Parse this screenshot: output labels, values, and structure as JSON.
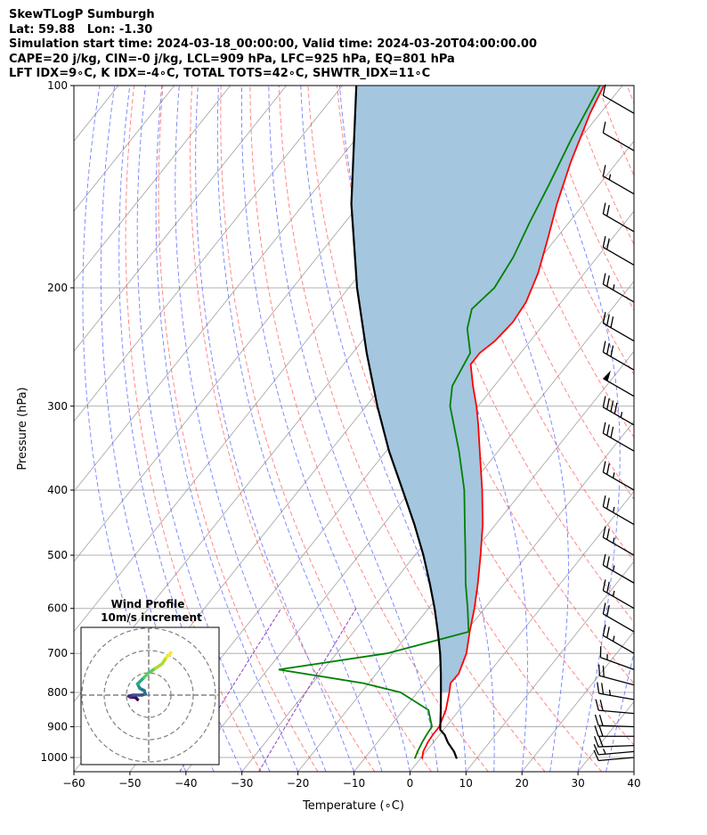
{
  "header": {
    "line1": "SkewTLogP Sumburgh",
    "line2": "Lat: 59.88   Lon: -1.30",
    "line3": "Simulation start time: 2024-03-18_00:00:00, Valid time: 2024-03-20T04:00:00.00",
    "line4": "CAPE=20 j/kg, CIN=-0 j/kg, LCL=909 hPa, LFC=925 hPa, EQ=801 hPa",
    "line5": "LFT IDX=9∘C, K IDX=-4∘C, TOTAL TOTS=42∘C, SHWTR_IDX=11∘C"
  },
  "chart_data": {
    "type": "line",
    "subtype": "skew-t log-p",
    "xlabel": "Temperature (∘C)",
    "ylabel": "Pressure (hPa)",
    "xlim": [
      -60,
      40
    ],
    "ylim": [
      1050,
      100
    ],
    "y_scale": "log",
    "x_ticks": [
      "−60",
      "−50",
      "−40",
      "−30",
      "−20",
      "−10",
      "0",
      "10",
      "20",
      "30",
      "40"
    ],
    "y_ticks": [
      "100",
      "200",
      "300",
      "400",
      "500",
      "600",
      "700",
      "800",
      "900",
      "1000"
    ],
    "series": [
      {
        "key": "temperature",
        "color": "#ff0000",
        "points": [
          [
            1004,
            0.3
          ],
          [
            980,
            -0.5
          ],
          [
            950,
            -1.0
          ],
          [
            925,
            -1.2
          ],
          [
            900,
            -1.2
          ],
          [
            850,
            -2.4
          ],
          [
            800,
            -4.3
          ],
          [
            775,
            -5.4
          ],
          [
            750,
            -5.3
          ],
          [
            700,
            -6.8
          ],
          [
            650,
            -9.3
          ],
          [
            600,
            -11.8
          ],
          [
            550,
            -14.8
          ],
          [
            500,
            -18.3
          ],
          [
            450,
            -22.3
          ],
          [
            400,
            -27.3
          ],
          [
            350,
            -33.3
          ],
          [
            320,
            -37.3
          ],
          [
            300,
            -40.3
          ],
          [
            280,
            -43.8
          ],
          [
            260,
            -47.3
          ],
          [
            250,
            -47.3
          ],
          [
            240,
            -46.3
          ],
          [
            225,
            -45.8
          ],
          [
            210,
            -46.3
          ],
          [
            190,
            -48.3
          ],
          [
            170,
            -51.3
          ],
          [
            150,
            -54.8
          ],
          [
            130,
            -58.3
          ],
          [
            110,
            -61.8
          ],
          [
            100,
            -63.3
          ]
        ]
      },
      {
        "key": "dewpoint",
        "color": "#008000",
        "points": [
          [
            1004,
            -1.0
          ],
          [
            980,
            -1.5
          ],
          [
            950,
            -2.0
          ],
          [
            925,
            -2.3
          ],
          [
            900,
            -2.5
          ],
          [
            850,
            -5.5
          ],
          [
            800,
            -13.0
          ],
          [
            775,
            -21.0
          ],
          [
            740,
            -38.0
          ],
          [
            700,
            -21.0
          ],
          [
            650,
            -9.5
          ],
          [
            600,
            -13.0
          ],
          [
            550,
            -17.0
          ],
          [
            500,
            -21.0
          ],
          [
            450,
            -25.5
          ],
          [
            400,
            -30.5
          ],
          [
            350,
            -37.0
          ],
          [
            300,
            -45.0
          ],
          [
            280,
            -47.5
          ],
          [
            250,
            -49.0
          ],
          [
            230,
            -53.0
          ],
          [
            215,
            -55.0
          ],
          [
            200,
            -54.0
          ],
          [
            180,
            -55.0
          ],
          [
            160,
            -57.0
          ],
          [
            140,
            -59.0
          ],
          [
            120,
            -61.5
          ],
          [
            100,
            -64.0
          ]
        ]
      },
      {
        "key": "parcel",
        "color": "#000000",
        "points": [
          [
            1004,
            6.5
          ],
          [
            980,
            5.0
          ],
          [
            950,
            2.6
          ],
          [
            925,
            0.9
          ],
          [
            909,
            -0.6
          ],
          [
            900,
            -1.0
          ],
          [
            850,
            -3.3
          ],
          [
            800,
            -5.8
          ],
          [
            750,
            -8.5
          ],
          [
            700,
            -11.5
          ],
          [
            650,
            -15.0
          ],
          [
            600,
            -18.9
          ],
          [
            550,
            -23.4
          ],
          [
            500,
            -28.5
          ],
          [
            450,
            -34.5
          ],
          [
            400,
            -41.5
          ],
          [
            350,
            -49.5
          ],
          [
            300,
            -58.0
          ],
          [
            250,
            -67.5
          ],
          [
            200,
            -78.5
          ],
          [
            150,
            -91.5
          ],
          [
            100,
            -107.5
          ]
        ]
      }
    ],
    "wind_barbs": [
      {
        "p": 1000,
        "speed_kt": 10,
        "dir": 265
      },
      {
        "p": 980,
        "speed_kt": 15,
        "dir": 265
      },
      {
        "p": 960,
        "speed_kt": 20,
        "dir": 268
      },
      {
        "p": 930,
        "speed_kt": 20,
        "dir": 270
      },
      {
        "p": 900,
        "speed_kt": 20,
        "dir": 272
      },
      {
        "p": 860,
        "speed_kt": 20,
        "dir": 275
      },
      {
        "p": 820,
        "speed_kt": 25,
        "dir": 280
      },
      {
        "p": 780,
        "speed_kt": 20,
        "dir": 285
      },
      {
        "p": 740,
        "speed_kt": 15,
        "dir": 290
      },
      {
        "p": 700,
        "speed_kt": 25,
        "dir": 300
      },
      {
        "p": 650,
        "speed_kt": 20,
        "dir": 300
      },
      {
        "p": 600,
        "speed_kt": 25,
        "dir": 300
      },
      {
        "p": 550,
        "speed_kt": 25,
        "dir": 300
      },
      {
        "p": 500,
        "speed_kt": 25,
        "dir": 300
      },
      {
        "p": 450,
        "speed_kt": 25,
        "dir": 300
      },
      {
        "p": 400,
        "speed_kt": 25,
        "dir": 300
      },
      {
        "p": 350,
        "speed_kt": 30,
        "dir": 300
      },
      {
        "p": 320,
        "speed_kt": 45,
        "dir": 300
      },
      {
        "p": 290,
        "speed_kt": 50,
        "dir": 300
      },
      {
        "p": 265,
        "speed_kt": 30,
        "dir": 300
      },
      {
        "p": 240,
        "speed_kt": 30,
        "dir": 300
      },
      {
        "p": 210,
        "speed_kt": 25,
        "dir": 300
      },
      {
        "p": 185,
        "speed_kt": 20,
        "dir": 300
      },
      {
        "p": 165,
        "speed_kt": 20,
        "dir": 300
      },
      {
        "p": 145,
        "speed_kt": 15,
        "dir": 300
      },
      {
        "p": 125,
        "speed_kt": 10,
        "dir": 300
      },
      {
        "p": 110,
        "speed_kt": 10,
        "dir": 300
      }
    ],
    "inset": {
      "title_line1": "Wind Profile",
      "title_line2": "10m/s increment",
      "rings_ms": [
        10,
        20,
        30
      ],
      "hodograph_uv": [
        [
          -5,
          -2
        ],
        [
          -6,
          -1
        ],
        [
          -8,
          -1
        ],
        [
          -9,
          -0.5
        ],
        [
          -7,
          0
        ],
        [
          -3,
          0
        ],
        [
          -1.5,
          0.5
        ],
        [
          -2,
          2
        ],
        [
          -4,
          3
        ],
        [
          -5,
          5
        ],
        [
          -4,
          6
        ],
        [
          -2,
          8
        ],
        [
          0,
          10
        ],
        [
          3,
          12
        ],
        [
          6,
          14
        ],
        [
          8,
          17
        ],
        [
          10,
          19
        ]
      ],
      "hodograph_colors": [
        "#440154",
        "#472d7b",
        "#3b528b",
        "#2c728e",
        "#21918c",
        "#28ae80",
        "#5ec962",
        "#addc30",
        "#fde725"
      ]
    },
    "colors": {
      "cape_fill": "#a4c6df",
      "isotherm": "#a0a0a0",
      "dry_adiabat": "#ff5050",
      "moist_adiabat": "#5060ff",
      "mixing_ratio": "#9040c0",
      "parcel": "#000000"
    }
  }
}
